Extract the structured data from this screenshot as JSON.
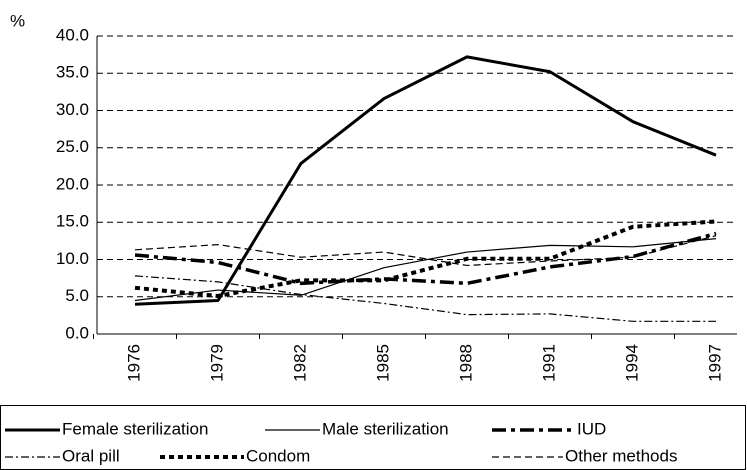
{
  "chart_data": {
    "type": "line",
    "y_label": "%",
    "categories": [
      "1976",
      "1979",
      "1982",
      "1985",
      "1988",
      "1991",
      "1994",
      "1997"
    ],
    "ylim": [
      0,
      40
    ],
    "yticks": [
      {
        "value": 0,
        "label": "0.0"
      },
      {
        "value": 5,
        "label": "5.0"
      },
      {
        "value": 10,
        "label": "10.0"
      },
      {
        "value": 15,
        "label": "15.0"
      },
      {
        "value": 20,
        "label": "20.0"
      },
      {
        "value": 25,
        "label": "25.0"
      },
      {
        "value": 30,
        "label": "30.0"
      },
      {
        "value": 35,
        "label": "35.0"
      },
      {
        "value": 40,
        "label": "40.0"
      }
    ],
    "grid": true,
    "series": [
      {
        "name": "Female sterilization",
        "color": "#000000",
        "line_style": "solid-thick",
        "values": [
          4.0,
          4.5,
          22.9,
          31.6,
          37.2,
          35.2,
          28.5,
          24.0
        ]
      },
      {
        "name": "Male sterilization",
        "color": "#000000",
        "line_style": "solid-thin",
        "values": [
          4.5,
          5.9,
          5.2,
          8.9,
          11.0,
          11.9,
          11.7,
          12.8
        ]
      },
      {
        "name": "IUD",
        "color": "#000000",
        "line_style": "dash-dot-thick",
        "values": [
          10.6,
          9.6,
          6.8,
          7.4,
          6.8,
          9.0,
          10.4,
          13.5
        ]
      },
      {
        "name": "Oral pill",
        "color": "#000000",
        "line_style": "dash-dot-thin",
        "values": [
          7.8,
          7.0,
          5.3,
          4.1,
          2.6,
          2.7,
          1.7,
          1.7
        ]
      },
      {
        "name": "Condom",
        "color": "#000000",
        "line_style": "dotted-thick",
        "values": [
          6.2,
          5.1,
          7.2,
          7.2,
          10.1,
          10.1,
          14.4,
          15.1
        ]
      },
      {
        "name": "Other methods",
        "color": "#000000",
        "line_style": "dashed-thin",
        "values": [
          11.3,
          12.0,
          10.3,
          11.0,
          9.2,
          9.8,
          10.3,
          13.2
        ]
      }
    ]
  }
}
